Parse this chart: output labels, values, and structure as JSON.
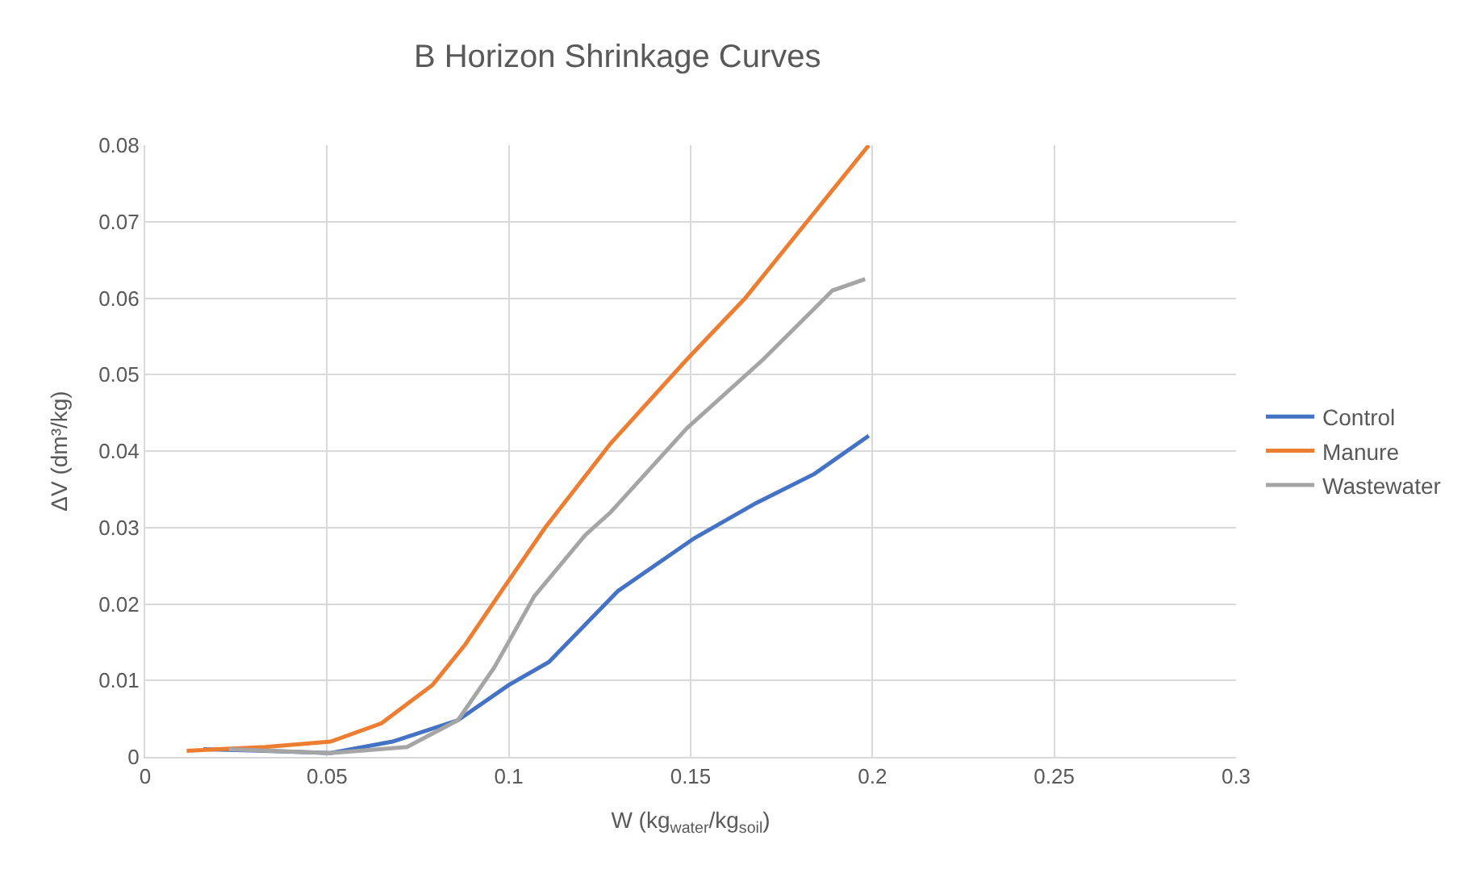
{
  "chart_data": {
    "type": "line",
    "title": "B Horizon Shrinkage Curves",
    "xlabel": "W (kg$_{water}$/kg$_{soil}$)",
    "ylabel": "ΔV (dm³/kg)",
    "xlim": [
      0,
      0.3
    ],
    "xticks": [
      0,
      0.05,
      0.1,
      0.15,
      0.2,
      0.25,
      0.3
    ],
    "ylim": [
      0,
      0.08
    ],
    "yticks": [
      0,
      0.01,
      0.02,
      0.03,
      0.04,
      0.05,
      0.06,
      0.07,
      0.08
    ],
    "grid": true,
    "legend": "right",
    "marker": "none",
    "line_style": "solid",
    "series": [
      {
        "name": "Control",
        "color": "#4472c4",
        "x": [
          0.016,
          0.033,
          0.051,
          0.068,
          0.086,
          0.1,
          0.111,
          0.13,
          0.151,
          0.168,
          0.184,
          0.199
        ],
        "values": [
          0.001,
          0.0008,
          0.0005,
          0.002,
          0.0048,
          0.0094,
          0.0124,
          0.0217,
          0.0286,
          0.0332,
          0.037,
          0.042
        ]
      },
      {
        "name": "Manure",
        "color": "#ed7d31",
        "x": [
          0.0114,
          0.033,
          0.051,
          0.065,
          0.079,
          0.088,
          0.098,
          0.11,
          0.128,
          0.149,
          0.165,
          0.182,
          0.199
        ],
        "values": [
          0.0008,
          0.0013,
          0.002,
          0.0044,
          0.0094,
          0.0147,
          0.0217,
          0.03,
          0.041,
          0.052,
          0.06,
          0.07,
          0.08
        ]
      },
      {
        "name": "Wastewater",
        "color": "#a5a5a5",
        "x": [
          0.023,
          0.051,
          0.072,
          0.086,
          0.096,
          0.107,
          0.121,
          0.128,
          0.149,
          0.17,
          0.189,
          0.198
        ],
        "values": [
          0.001,
          0.0005,
          0.0013,
          0.0048,
          0.0117,
          0.021,
          0.029,
          0.032,
          0.043,
          0.052,
          0.061,
          0.0625
        ]
      }
    ]
  }
}
